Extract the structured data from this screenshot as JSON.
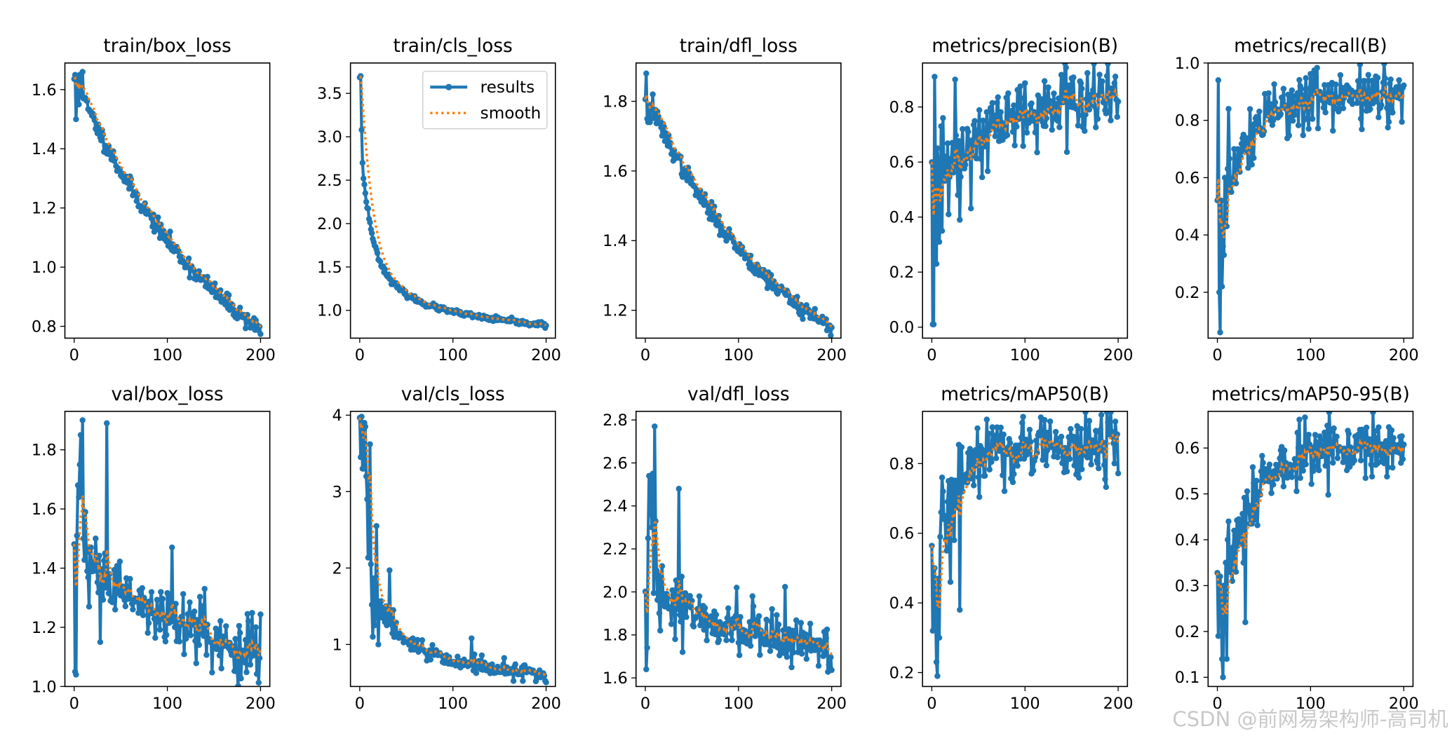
{
  "figure": {
    "watermark": "CSDN @前网易架构师-高司机",
    "colors": {
      "results": "#1f77b4",
      "smooth": "#ff7f0e",
      "axes": "#000000",
      "watermark": "#c9c9c9"
    }
  },
  "chart_data": [
    {
      "type": "line",
      "title": "train/box_loss",
      "xlim": [
        0,
        200
      ],
      "ylim": [
        0.76,
        1.69
      ],
      "xticks": [
        0,
        100,
        200
      ],
      "xtick_labels": [
        "0",
        "100",
        "200"
      ],
      "yticks": [
        0.8,
        1.0,
        1.2,
        1.4,
        1.6
      ],
      "ytick_labels": [
        "0.8",
        "1.0",
        "1.2",
        "1.4",
        "1.6"
      ],
      "shape": "decay",
      "y_start": 1.64,
      "y_end": 0.79,
      "shape_k": 1.2,
      "noise": 0.015,
      "seed": 11,
      "anchors": [
        [
          1,
          1.65
        ],
        [
          2,
          1.5
        ],
        [
          3,
          1.58
        ],
        [
          4,
          1.64
        ],
        [
          5,
          1.55
        ],
        [
          6,
          1.65
        ],
        [
          8,
          1.61
        ],
        [
          9,
          1.66
        ],
        [
          10,
          1.57
        ]
      ],
      "series": [
        {
          "name": "results",
          "style": "line+markers"
        },
        {
          "name": "smooth",
          "style": "dotted"
        }
      ],
      "legend": null
    },
    {
      "type": "line",
      "title": "train/cls_loss",
      "xlim": [
        0,
        200
      ],
      "ylim": [
        0.68,
        3.85
      ],
      "xticks": [
        0,
        100,
        200
      ],
      "xtick_labels": [
        "0",
        "100",
        "200"
      ],
      "yticks": [
        1.0,
        1.5,
        2.0,
        2.5,
        3.0,
        3.5
      ],
      "ytick_labels": [
        "1.0",
        "1.5",
        "2.0",
        "2.5",
        "3.0",
        "3.5"
      ],
      "shape": "fastdecay",
      "y_start": 3.7,
      "y_end": 0.83,
      "shape_k": 0.13,
      "noise": 0.015,
      "seed": 23,
      "anchors": [
        [
          1,
          3.7
        ],
        [
          2,
          3.08
        ],
        [
          3,
          2.7
        ],
        [
          4,
          2.52
        ],
        [
          5,
          2.45
        ],
        [
          6,
          2.35
        ],
        [
          7,
          2.25
        ],
        [
          8,
          2.18
        ]
      ],
      "series": [
        {
          "name": "results",
          "style": "line+markers"
        },
        {
          "name": "smooth",
          "style": "dotted"
        }
      ],
      "legend": {
        "placement": "upper right",
        "entries": [
          "results",
          "smooth"
        ]
      }
    },
    {
      "type": "line",
      "title": "train/dfl_loss",
      "xlim": [
        0,
        200
      ],
      "ylim": [
        1.12,
        1.91
      ],
      "xticks": [
        0,
        100,
        200
      ],
      "xtick_labels": [
        "0",
        "100",
        "200"
      ],
      "yticks": [
        1.2,
        1.4,
        1.6,
        1.8
      ],
      "ytick_labels": [
        "1.2",
        "1.4",
        "1.6",
        "1.8"
      ],
      "shape": "decay",
      "y_start": 1.82,
      "y_end": 1.15,
      "shape_k": 1.3,
      "noise": 0.013,
      "seed": 37,
      "anchors": [
        [
          1,
          1.88
        ],
        [
          2,
          1.75
        ],
        [
          3,
          1.74
        ],
        [
          4,
          1.78
        ],
        [
          5,
          1.74
        ],
        [
          6,
          1.79
        ],
        [
          8,
          1.82
        ],
        [
          10,
          1.76
        ]
      ],
      "series": [
        {
          "name": "results",
          "style": "line+markers"
        },
        {
          "name": "smooth",
          "style": "dotted"
        }
      ],
      "legend": null
    },
    {
      "type": "line",
      "title": "metrics/precision(B)",
      "xlim": [
        0,
        200
      ],
      "ylim": [
        -0.04,
        0.96
      ],
      "xticks": [
        0,
        100,
        200
      ],
      "xtick_labels": [
        "0",
        "100",
        "200"
      ],
      "yticks": [
        0.0,
        0.2,
        0.4,
        0.6,
        0.8
      ],
      "ytick_labels": [
        "0.0",
        "0.2",
        "0.4",
        "0.6",
        "0.8"
      ],
      "shape": "rise",
      "y_start": 0.5,
      "y_end": 0.84,
      "shape_k": 0.018,
      "noise": 0.06,
      "seed": 41,
      "anchors": [
        [
          1,
          0.01
        ],
        [
          2,
          0.01
        ],
        [
          3,
          0.91
        ],
        [
          4,
          0.57
        ],
        [
          5,
          0.23
        ],
        [
          6,
          0.65
        ],
        [
          8,
          0.31
        ],
        [
          9,
          0.38
        ],
        [
          10,
          0.73
        ],
        [
          11,
          0.35
        ],
        [
          12,
          0.76
        ],
        [
          15,
          0.62
        ],
        [
          18,
          0.41
        ],
        [
          22,
          0.67
        ],
        [
          25,
          0.9
        ],
        [
          28,
          0.48
        ],
        [
          30,
          0.39
        ],
        [
          33,
          0.72
        ],
        [
          36,
          0.59
        ]
      ],
      "series": [
        {
          "name": "results",
          "style": "line+markers"
        },
        {
          "name": "smooth",
          "style": "dotted"
        }
      ],
      "legend": null
    },
    {
      "type": "line",
      "title": "metrics/recall(B)",
      "xlim": [
        0,
        200
      ],
      "ylim": [
        0.04,
        1.0
      ],
      "xticks": [
        0,
        100,
        200
      ],
      "xtick_labels": [
        "0",
        "100",
        "200"
      ],
      "yticks": [
        0.2,
        0.4,
        0.6,
        0.8,
        1.0
      ],
      "ytick_labels": [
        "0.2",
        "0.4",
        "0.6",
        "0.8",
        "1.0"
      ],
      "shape": "rise",
      "y_start": 0.45,
      "y_end": 0.9,
      "shape_k": 0.03,
      "noise": 0.05,
      "seed": 53,
      "anchors": [
        [
          1,
          0.94
        ],
        [
          2,
          0.2
        ],
        [
          3,
          0.06
        ],
        [
          4,
          0.52
        ],
        [
          5,
          0.22
        ],
        [
          6,
          0.36
        ],
        [
          7,
          0.33
        ],
        [
          8,
          0.6
        ],
        [
          10,
          0.43
        ],
        [
          12,
          0.84
        ],
        [
          15,
          0.55
        ],
        [
          18,
          0.7
        ],
        [
          20,
          0.58
        ],
        [
          24,
          0.62
        ],
        [
          28,
          0.75
        ]
      ],
      "series": [
        {
          "name": "results",
          "style": "line+markers"
        },
        {
          "name": "smooth",
          "style": "dotted"
        }
      ],
      "legend": null
    },
    {
      "type": "line",
      "title": "val/box_loss",
      "xlim": [
        0,
        200
      ],
      "ylim": [
        1.0,
        1.93
      ],
      "xticks": [
        0,
        100,
        200
      ],
      "xtick_labels": [
        "0",
        "100",
        "200"
      ],
      "yticks": [
        1.0,
        1.2,
        1.4,
        1.6,
        1.8
      ],
      "ytick_labels": [
        "1.0",
        "1.2",
        "1.4",
        "1.6",
        "1.8"
      ],
      "shape": "decay",
      "y_start": 1.45,
      "y_end": 1.1,
      "shape_k": 1.1,
      "noise": 0.05,
      "seed": 61,
      "anchors": [
        [
          1,
          1.05
        ],
        [
          2,
          1.04
        ],
        [
          3,
          1.51
        ],
        [
          4,
          1.68
        ],
        [
          5,
          1.64
        ],
        [
          6,
          1.75
        ],
        [
          7,
          1.85
        ],
        [
          8,
          1.65
        ],
        [
          9,
          1.9
        ],
        [
          10,
          1.5
        ],
        [
          12,
          1.59
        ],
        [
          14,
          1.39
        ],
        [
          16,
          1.27
        ],
        [
          18,
          1.47
        ],
        [
          20,
          1.42
        ],
        [
          24,
          1.44
        ],
        [
          28,
          1.15
        ],
        [
          30,
          1.3
        ],
        [
          33,
          1.45
        ],
        [
          35,
          1.89
        ],
        [
          38,
          1.38
        ],
        [
          42,
          1.3
        ],
        [
          105,
          1.47
        ],
        [
          140,
          1.33
        ]
      ],
      "series": [
        {
          "name": "results",
          "style": "line+markers"
        },
        {
          "name": "smooth",
          "style": "dotted"
        }
      ],
      "legend": null
    },
    {
      "type": "line",
      "title": "val/cls_loss",
      "xlim": [
        0,
        200
      ],
      "ylim": [
        0.45,
        4.05
      ],
      "xticks": [
        0,
        100,
        200
      ],
      "xtick_labels": [
        "0",
        "100",
        "200"
      ],
      "yticks": [
        1,
        2,
        3,
        4
      ],
      "ytick_labels": [
        "1",
        "2",
        "3",
        "4"
      ],
      "shape": "fastdecay",
      "y_start": 3.9,
      "y_end": 0.6,
      "shape_k": 0.12,
      "noise": 0.05,
      "seed": 73,
      "anchors": [
        [
          1,
          3.45
        ],
        [
          2,
          3.98
        ],
        [
          3,
          3.3
        ],
        [
          4,
          3.3
        ],
        [
          5,
          3.9
        ],
        [
          6,
          3.85
        ],
        [
          7,
          3.2
        ],
        [
          8,
          2.9
        ],
        [
          10,
          2.55
        ],
        [
          11,
          3.62
        ],
        [
          12,
          2.05
        ],
        [
          13,
          1.52
        ],
        [
          14,
          1.1
        ],
        [
          16,
          1.25
        ],
        [
          18,
          2.55
        ],
        [
          20,
          1.0
        ],
        [
          24,
          1.35
        ],
        [
          28,
          1.5
        ],
        [
          32,
          1.97
        ],
        [
          36,
          1.45
        ],
        [
          40,
          1.1
        ],
        [
          120,
          1.08
        ]
      ],
      "series": [
        {
          "name": "results",
          "style": "line+markers"
        },
        {
          "name": "smooth",
          "style": "dotted"
        }
      ],
      "legend": null
    },
    {
      "type": "line",
      "title": "val/dfl_loss",
      "xlim": [
        0,
        200
      ],
      "ylim": [
        1.56,
        2.84
      ],
      "xticks": [
        0,
        100,
        200
      ],
      "xtick_labels": [
        "0",
        "100",
        "200"
      ],
      "yticks": [
        1.6,
        1.8,
        2.0,
        2.2,
        2.4,
        2.6,
        2.8
      ],
      "ytick_labels": [
        "1.6",
        "1.8",
        "2.0",
        "2.2",
        "2.4",
        "2.6",
        "2.8"
      ],
      "shape": "decay",
      "y_start": 2.05,
      "y_end": 1.74,
      "shape_k": 2.0,
      "noise": 0.05,
      "seed": 89,
      "anchors": [
        [
          1,
          1.64
        ],
        [
          2,
          1.74
        ],
        [
          3,
          2.25
        ],
        [
          4,
          2.54
        ],
        [
          5,
          2.36
        ],
        [
          6,
          2.53
        ],
        [
          7,
          2.3
        ],
        [
          8,
          2.55
        ],
        [
          10,
          2.77
        ],
        [
          11,
          2.33
        ],
        [
          12,
          2.1
        ],
        [
          14,
          2.08
        ],
        [
          16,
          1.82
        ],
        [
          18,
          2.12
        ],
        [
          20,
          1.95
        ],
        [
          24,
          1.97
        ],
        [
          28,
          1.85
        ],
        [
          32,
          1.78
        ],
        [
          36,
          2.48
        ],
        [
          40,
          1.72
        ],
        [
          98,
          2.02
        ],
        [
          115,
          1.98
        ]
      ],
      "series": [
        {
          "name": "results",
          "style": "line+markers"
        },
        {
          "name": "smooth",
          "style": "dotted"
        }
      ],
      "legend": null
    },
    {
      "type": "line",
      "title": "metrics/mAP50(B)",
      "xlim": [
        0,
        200
      ],
      "ylim": [
        0.16,
        0.95
      ],
      "xticks": [
        0,
        100,
        200
      ],
      "xtick_labels": [
        "0",
        "100",
        "200"
      ],
      "yticks": [
        0.2,
        0.4,
        0.6,
        0.8
      ],
      "ytick_labels": [
        "0.2",
        "0.4",
        "0.6",
        "0.8"
      ],
      "shape": "rise",
      "y_start": 0.5,
      "y_end": 0.86,
      "shape_k": 0.04,
      "noise": 0.045,
      "seed": 97,
      "anchors": [
        [
          1,
          0.32
        ],
        [
          2,
          0.42
        ],
        [
          3,
          0.5
        ],
        [
          4,
          0.38
        ],
        [
          5,
          0.23
        ],
        [
          6,
          0.19
        ],
        [
          7,
          0.47
        ],
        [
          8,
          0.3
        ],
        [
          9,
          0.59
        ],
        [
          10,
          0.66
        ],
        [
          11,
          0.76
        ],
        [
          12,
          0.72
        ],
        [
          14,
          0.65
        ],
        [
          16,
          0.55
        ],
        [
          18,
          0.75
        ],
        [
          20,
          0.46
        ],
        [
          24,
          0.58
        ],
        [
          28,
          0.68
        ],
        [
          30,
          0.38
        ],
        [
          33,
          0.72
        ]
      ],
      "series": [
        {
          "name": "results",
          "style": "line+markers"
        },
        {
          "name": "smooth",
          "style": "dotted"
        }
      ],
      "legend": null
    },
    {
      "type": "line",
      "title": "metrics/mAP50-95(B)",
      "xlim": [
        0,
        200
      ],
      "ylim": [
        0.08,
        0.68
      ],
      "xticks": [
        0,
        100,
        200
      ],
      "xtick_labels": [
        "0",
        "100",
        "200"
      ],
      "yticks": [
        0.1,
        0.2,
        0.3,
        0.4,
        0.5,
        0.6
      ],
      "ytick_labels": [
        "0.1",
        "0.2",
        "0.3",
        "0.4",
        "0.5",
        "0.6"
      ],
      "shape": "rise",
      "y_start": 0.28,
      "y_end": 0.6,
      "shape_k": 0.028,
      "noise": 0.03,
      "seed": 107,
      "anchors": [
        [
          1,
          0.19
        ],
        [
          2,
          0.28
        ],
        [
          3,
          0.32
        ],
        [
          4,
          0.26
        ],
        [
          5,
          0.14
        ],
        [
          6,
          0.1
        ],
        [
          7,
          0.3
        ],
        [
          8,
          0.2
        ],
        [
          9,
          0.35
        ],
        [
          10,
          0.14
        ],
        [
          11,
          0.4
        ],
        [
          12,
          0.44
        ],
        [
          14,
          0.38
        ],
        [
          16,
          0.31
        ],
        [
          18,
          0.42
        ],
        [
          20,
          0.33
        ],
        [
          24,
          0.39
        ],
        [
          28,
          0.35
        ],
        [
          30,
          0.22
        ],
        [
          34,
          0.46
        ]
      ],
      "series": [
        {
          "name": "results",
          "style": "line+markers"
        },
        {
          "name": "smooth",
          "style": "dotted"
        }
      ],
      "legend": null
    }
  ]
}
